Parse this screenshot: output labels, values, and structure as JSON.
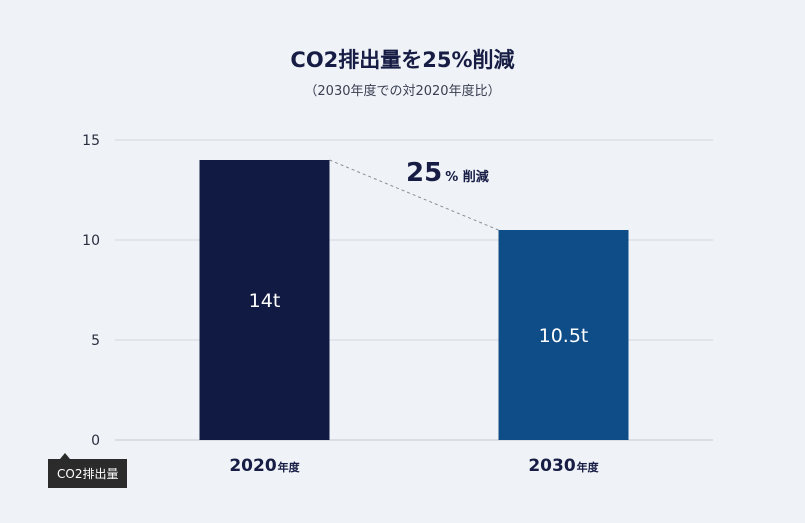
{
  "chart_data": {
    "type": "bar",
    "title": "CO2排出量を25%削減",
    "subtitle": "（2030年度での対2020年度比）",
    "ylabel": "CO2排出量",
    "ylim": [
      0,
      15
    ],
    "yticks": [
      0,
      5,
      10,
      15
    ],
    "grid": true,
    "categories": [
      {
        "num": "2020",
        "unit": "年度"
      },
      {
        "num": "2030",
        "unit": "年度"
      }
    ],
    "values": [
      14,
      10.5
    ],
    "value_labels": [
      "14t",
      "10.5t"
    ],
    "bar_colors": [
      "#101a42",
      "#0f4d88"
    ],
    "annotation": {
      "num": "25",
      "unit": "% 削減"
    }
  }
}
